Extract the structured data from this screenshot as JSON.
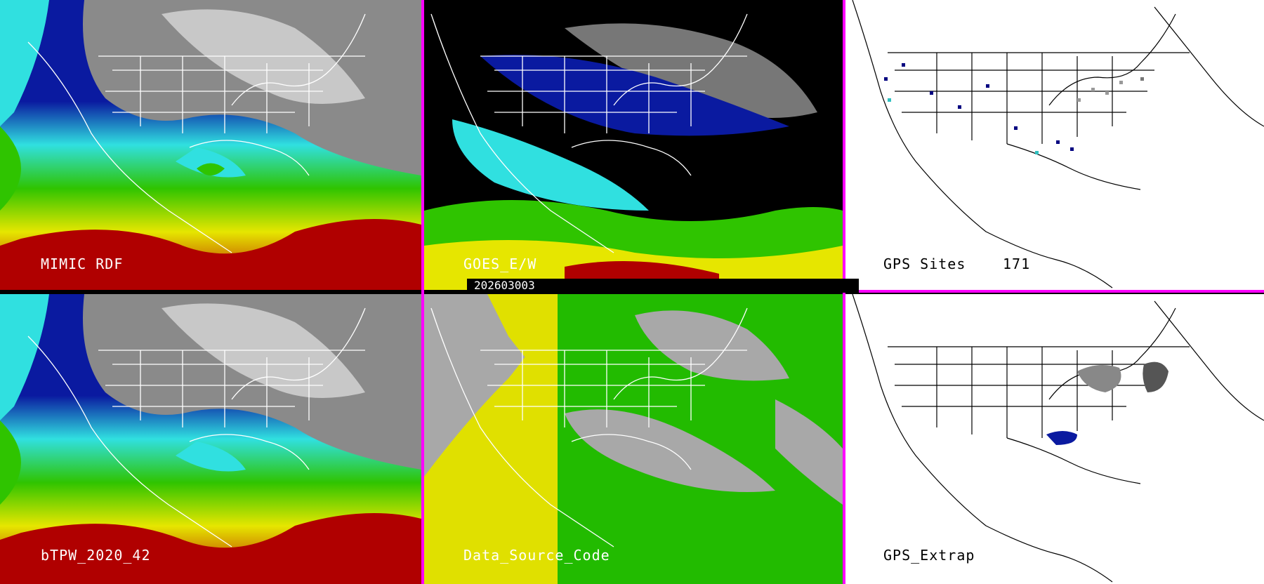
{
  "panels": {
    "mimic": {
      "label": "MIMIC RDF"
    },
    "goes": {
      "label": "GOES_E/W"
    },
    "gps_sites": {
      "label": "GPS Sites",
      "count": "171"
    },
    "btpw": {
      "label": "bTPW_2020_42"
    },
    "data_source": {
      "label": "Data_Source_Code"
    },
    "gps_extrap": {
      "label": "GPS_Extrap"
    }
  },
  "timestamp": "202603003",
  "colors": {
    "separator": "#ff00ff",
    "dry_gray": "#9a9a9a",
    "blue": "#0a1aa0",
    "cyan": "#30e0e0",
    "green": "#2fc400",
    "yellow": "#e6e600",
    "red": "#b00000",
    "source_gray": "#a8a8a8",
    "source_green": "#22bb00",
    "source_yellow": "#e0e000"
  }
}
